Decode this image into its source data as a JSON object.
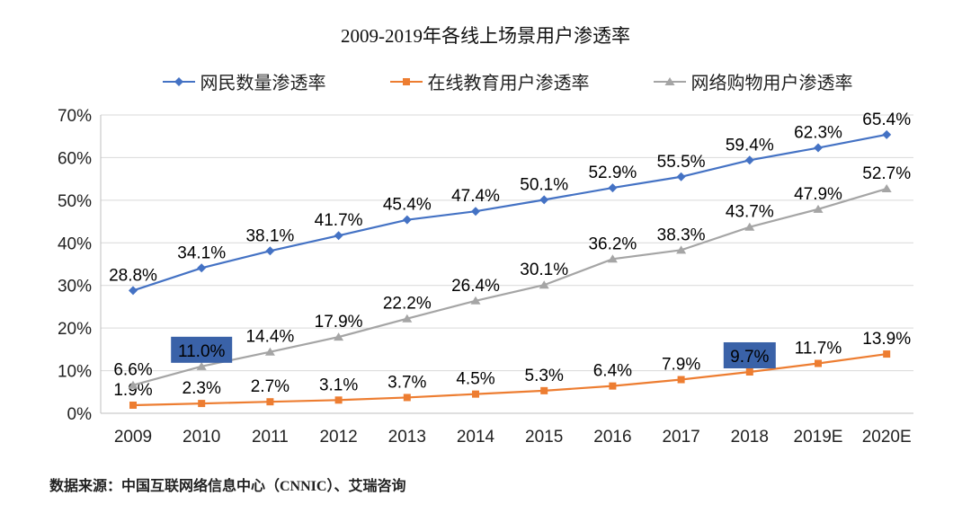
{
  "title": "2009-2019年各线上场景用户渗透率",
  "source_note": "数据来源：中国互联网络信息中心（CNNIC）、艾瑞咨询",
  "colors": {
    "netizen_line": "#4472C4",
    "education_line": "#ED7D31",
    "shopping_line": "#A5A5A5",
    "gridline": "#D9D9D9",
    "axis_line": "#BFBFBF",
    "highlight_bg": "#3A62A8",
    "label_text": "#000000"
  },
  "chart_data": {
    "type": "line",
    "title": "2009-2019年各线上场景用户渗透率",
    "xlabel": "",
    "ylabel": "",
    "categories": [
      "2009",
      "2010",
      "2011",
      "2012",
      "2013",
      "2014",
      "2015",
      "2016",
      "2017",
      "2018",
      "2019E",
      "2020E"
    ],
    "series": [
      {
        "name": "网民数量渗透率",
        "color": "#4472C4",
        "marker": "diamond",
        "values": [
          28.8,
          34.1,
          38.1,
          41.7,
          45.4,
          47.4,
          50.1,
          52.9,
          55.5,
          59.4,
          62.3,
          65.4
        ],
        "highlight_indices": []
      },
      {
        "name": "在线教育用户渗透率",
        "color": "#ED7D31",
        "marker": "square",
        "values": [
          1.9,
          2.3,
          2.7,
          3.1,
          3.7,
          4.5,
          5.3,
          6.4,
          7.9,
          9.7,
          11.7,
          13.9
        ],
        "highlight_indices": [
          9
        ]
      },
      {
        "name": "网络购物用户渗透率",
        "color": "#A5A5A5",
        "marker": "triangle",
        "values": [
          6.6,
          11.0,
          14.4,
          17.9,
          22.2,
          26.4,
          30.1,
          36.2,
          38.3,
          43.7,
          47.9,
          52.7
        ],
        "highlight_indices": [
          1
        ]
      }
    ],
    "ylim": [
      0,
      70
    ],
    "ytick_step": 10,
    "yticks": [
      "0%",
      "10%",
      "20%",
      "30%",
      "40%",
      "50%",
      "60%",
      "70%"
    ],
    "grid": true,
    "legend_position": "top",
    "highlight_bg": "#3A62A8",
    "label_format": "one_decimal_percent"
  }
}
